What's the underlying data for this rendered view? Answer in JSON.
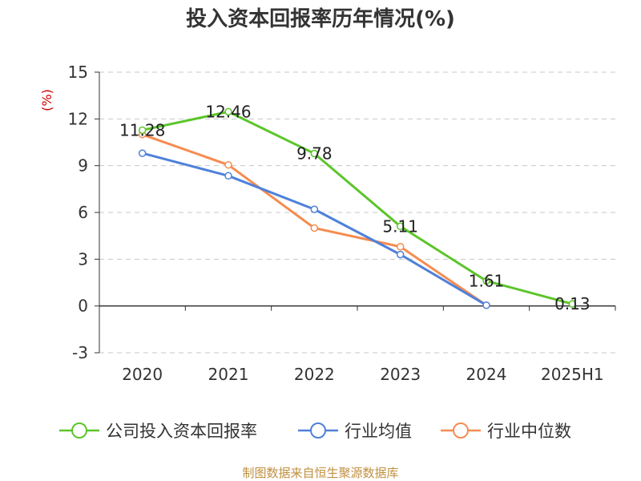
{
  "chart_data": {
    "type": "line",
    "title": "投入资本回报率历年情况(%)",
    "ylabel": "(%)",
    "categories": [
      "2020",
      "2021",
      "2022",
      "2023",
      "2024",
      "2025H1"
    ],
    "ylim": [
      -3,
      15
    ],
    "yticks": [
      15,
      12,
      9,
      6,
      3,
      0,
      -3
    ],
    "grid": true,
    "legend_position": "bottom",
    "series": [
      {
        "name": "公司投入资本回报率",
        "color": "#5cc52a",
        "values": [
          11.28,
          12.46,
          9.78,
          5.11,
          1.61,
          0.13
        ],
        "data_labels": [
          "11.28",
          "12.46",
          "9.78",
          "5.11",
          "1.61",
          "0.13"
        ]
      },
      {
        "name": "行业均值",
        "color": "#4f81d9",
        "values": [
          9.8,
          8.35,
          6.2,
          3.3,
          0.05,
          null
        ]
      },
      {
        "name": "行业中位数",
        "color": "#f58c50",
        "values": [
          11.0,
          9.05,
          5.0,
          3.8,
          0.05,
          null
        ]
      }
    ]
  },
  "source": "制图数据来自恒生聚源数据库"
}
